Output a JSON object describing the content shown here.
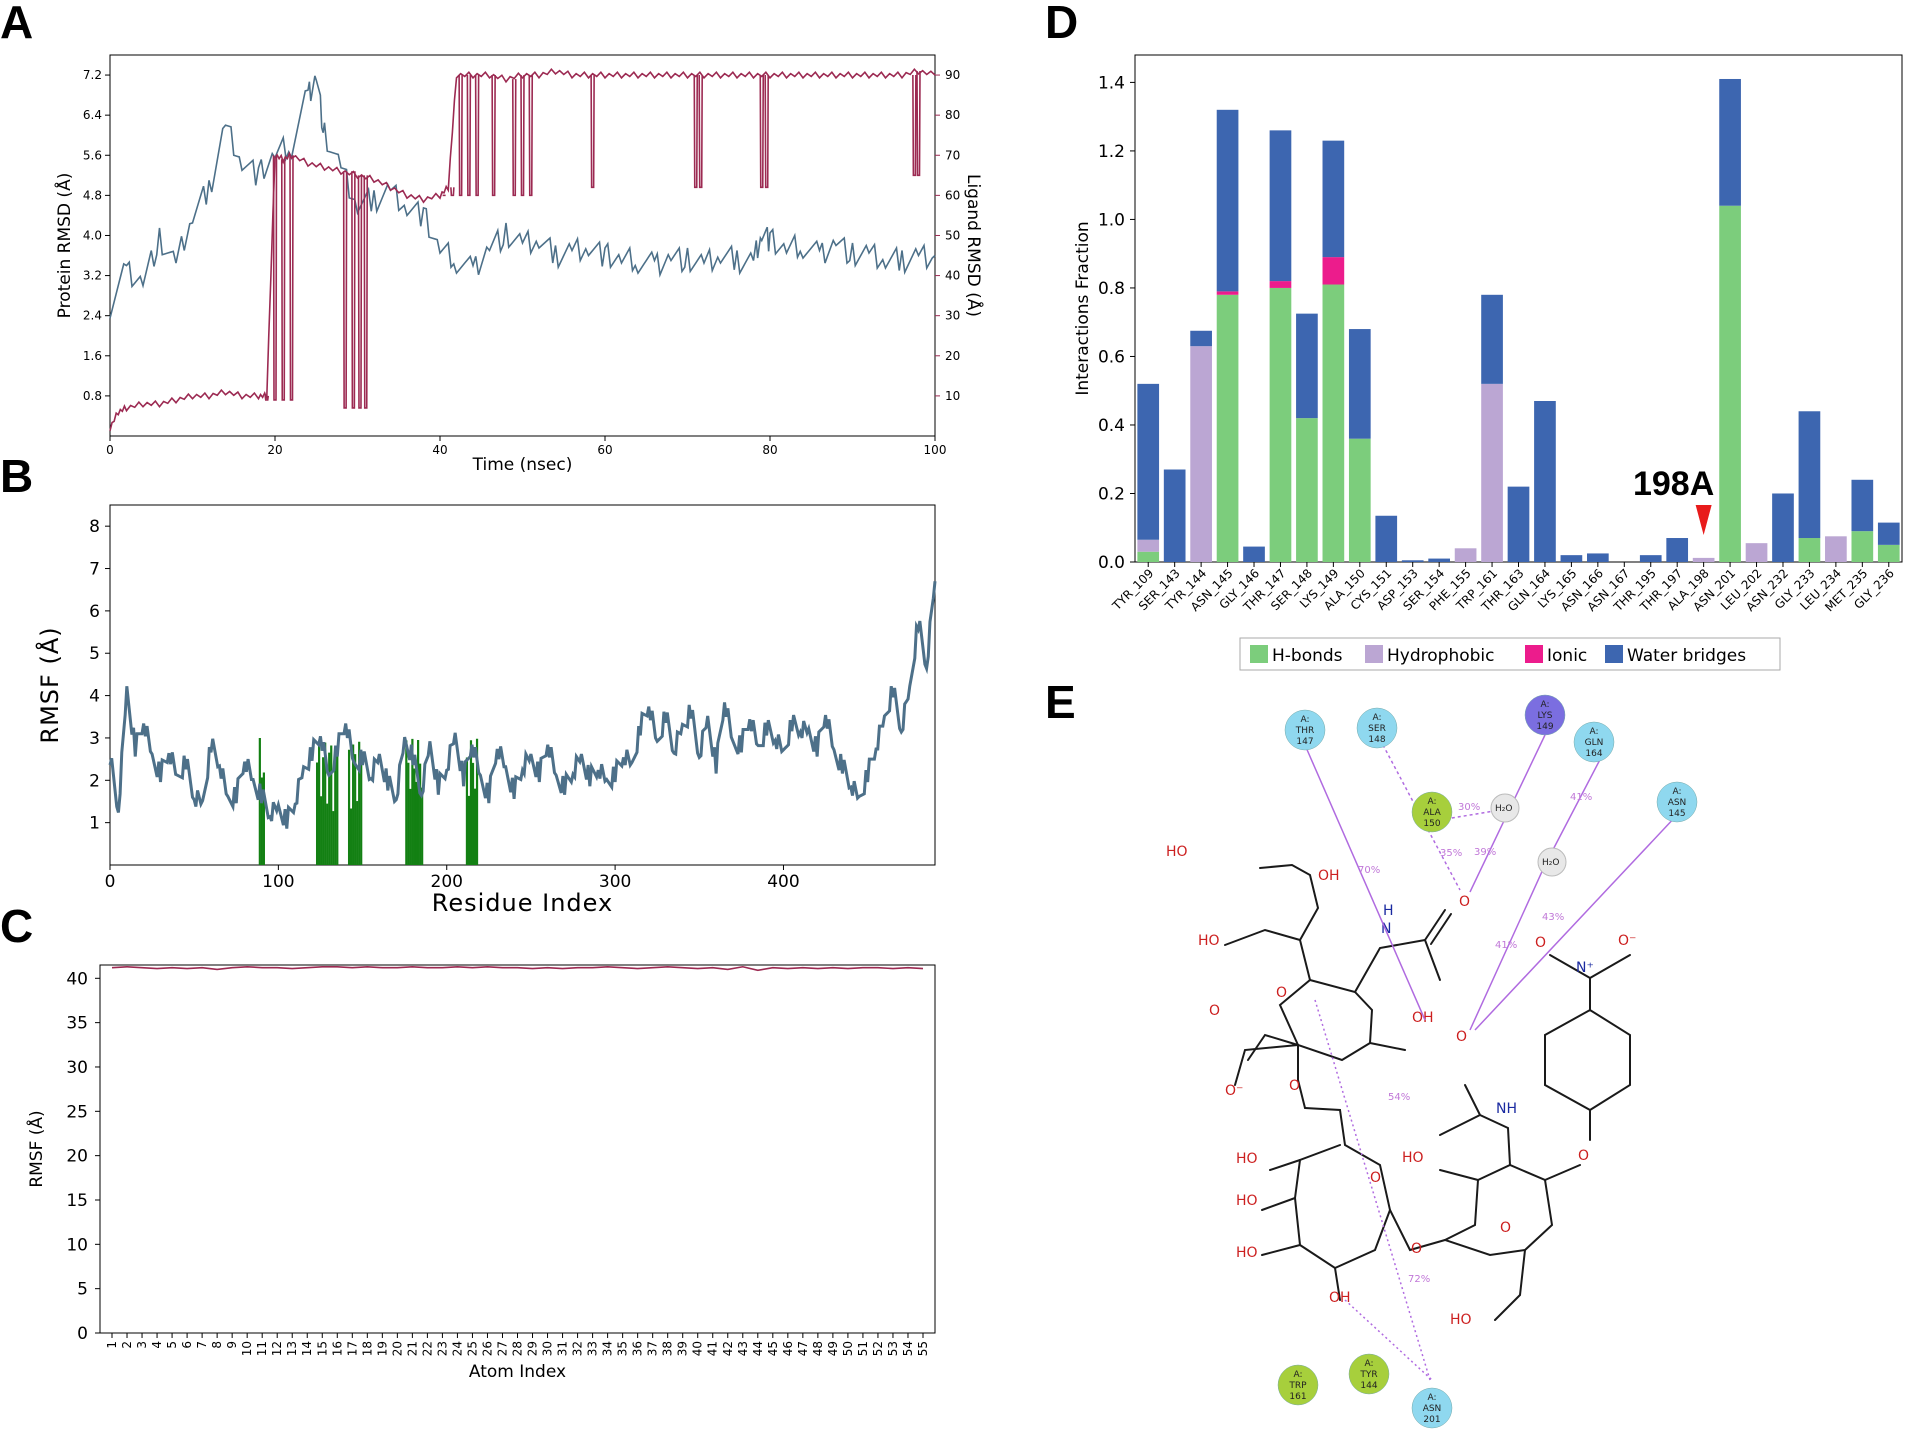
{
  "panels": {
    "a": "A",
    "b": "B",
    "c": "C",
    "d": "D",
    "e": "E"
  },
  "colors": {
    "protein": "#4d7089",
    "ligand": "#9c2a52",
    "hbond": "#7ccd7c",
    "hydrophobic": "#bba6d3",
    "ionic": "#ec1c8c",
    "water": "#3d66b0",
    "contact": "#138013",
    "arrow": "#b06be0"
  },
  "chart_data": [
    {
      "id": "A",
      "type": "line",
      "title": "",
      "xlabel": "Time (nsec)",
      "ylabel": "Protein RMSD (Å)",
      "ylabel2": "Ligand RMSD (Å)",
      "xlim": [
        0,
        100
      ],
      "ylim": [
        0,
        7.6
      ],
      "y2lim": [
        0,
        95
      ],
      "xticks": [
        "0",
        "20",
        "40",
        "60",
        "80",
        "100"
      ],
      "yticks": [
        "0.8",
        "1.6",
        "2.4",
        "3.2",
        "4.0",
        "4.8",
        "5.6",
        "6.4",
        "7.2"
      ],
      "y2ticks": [
        "10",
        "20",
        "30",
        "40",
        "50",
        "60",
        "70",
        "80",
        "90"
      ],
      "series": [
        {
          "name": "Protein RMSD",
          "axis": "left",
          "x": [
            0,
            2,
            4,
            6,
            8,
            10,
            12,
            14,
            16,
            18,
            20,
            22,
            24,
            25,
            26,
            28,
            30,
            32,
            34,
            36,
            38,
            40,
            42,
            44,
            46,
            48,
            50,
            52,
            54,
            56,
            58,
            60,
            62,
            64,
            66,
            68,
            70,
            72,
            74,
            76,
            78,
            79,
            80,
            82,
            84,
            86,
            88,
            90,
            92,
            94,
            96,
            98,
            100
          ],
          "y": [
            2.6,
            3.3,
            3.1,
            3.9,
            3.4,
            4.4,
            4.9,
            6.2,
            5.5,
            5.2,
            5.6,
            5.8,
            6.8,
            7.2,
            6.0,
            5.3,
            4.6,
            4.7,
            4.9,
            4.6,
            4.4,
            3.7,
            3.5,
            3.3,
            3.8,
            4.0,
            3.8,
            3.9,
            3.6,
            3.7,
            3.8,
            3.6,
            3.5,
            3.5,
            3.4,
            3.6,
            3.5,
            3.4,
            3.6,
            3.5,
            3.5,
            4.1,
            3.9,
            3.7,
            3.8,
            3.6,
            3.9,
            3.6,
            3.6,
            3.5,
            3.5,
            3.6,
            3.6
          ]
        },
        {
          "name": "Ligand RMSD",
          "axis": "right",
          "x": [
            0,
            1,
            2,
            4,
            6,
            8,
            10,
            12,
            14,
            16,
            18,
            19,
            20,
            21,
            22,
            24,
            26,
            28,
            30,
            32,
            34,
            36,
            38,
            40,
            41,
            42,
            44,
            46,
            48,
            50,
            52,
            54,
            56,
            58,
            60,
            62,
            64,
            66,
            68,
            70,
            72,
            74,
            76,
            78,
            80,
            82,
            84,
            86,
            88,
            90,
            92,
            94,
            96,
            98,
            100
          ],
          "y": [
            2,
            6,
            7,
            8,
            8,
            9,
            10,
            10,
            11,
            10,
            10,
            10,
            70,
            69,
            70,
            68,
            67,
            66,
            65,
            64,
            62,
            60,
            59,
            60,
            62,
            90,
            90,
            90,
            89,
            90,
            90,
            91,
            90,
            90,
            90,
            90,
            90,
            90,
            90,
            90,
            90,
            90,
            90,
            90,
            90,
            90,
            90,
            90,
            90,
            90,
            90,
            90,
            90,
            91,
            90
          ]
        }
      ],
      "dropouts_ligand": [
        {
          "x": 19,
          "to": 9
        },
        {
          "x": 20,
          "to": 9
        },
        {
          "x": 21,
          "to": 9
        },
        {
          "x": 22,
          "to": 9
        },
        {
          "x": 28.5,
          "to": 7
        },
        {
          "x": 29.5,
          "to": 7
        },
        {
          "x": 30.3,
          "to": 7
        },
        {
          "x": 31,
          "to": 7
        },
        {
          "x": 40.5,
          "to": 60
        },
        {
          "x": 41.5,
          "to": 60
        },
        {
          "x": 42.5,
          "to": 60
        },
        {
          "x": 43.5,
          "to": 60
        },
        {
          "x": 44.5,
          "to": 60
        },
        {
          "x": 46.5,
          "to": 60
        },
        {
          "x": 49,
          "to": 60
        },
        {
          "x": 50,
          "to": 60
        },
        {
          "x": 51,
          "to": 60
        },
        {
          "x": 58.5,
          "to": 62
        },
        {
          "x": 71,
          "to": 62
        },
        {
          "x": 71.6,
          "to": 62
        },
        {
          "x": 79,
          "to": 62
        },
        {
          "x": 79.6,
          "to": 62
        },
        {
          "x": 97.5,
          "to": 65
        },
        {
          "x": 98,
          "to": 65
        }
      ]
    },
    {
      "id": "B",
      "type": "line",
      "xlabel": "Residue Index",
      "ylabel": "RMSF (Å)",
      "xlim": [
        0,
        490
      ],
      "ylim": [
        0,
        8.5
      ],
      "xticks": [
        "0",
        "100",
        "200",
        "300",
        "400"
      ],
      "yticks": [
        "1",
        "2",
        "3",
        "4",
        "5",
        "6",
        "7",
        "8"
      ],
      "series": [
        {
          "name": "RMSF",
          "x": [
            0,
            5,
            10,
            15,
            20,
            25,
            30,
            35,
            40,
            45,
            50,
            55,
            60,
            65,
            70,
            75,
            80,
            85,
            90,
            95,
            100,
            105,
            110,
            115,
            120,
            125,
            130,
            135,
            140,
            145,
            150,
            155,
            160,
            165,
            170,
            175,
            180,
            185,
            190,
            195,
            200,
            205,
            210,
            215,
            220,
            225,
            230,
            235,
            240,
            245,
            250,
            255,
            260,
            265,
            270,
            275,
            280,
            285,
            290,
            295,
            300,
            305,
            310,
            315,
            320,
            325,
            330,
            335,
            340,
            345,
            350,
            355,
            360,
            365,
            370,
            375,
            380,
            385,
            390,
            395,
            400,
            405,
            410,
            415,
            420,
            425,
            430,
            435,
            440,
            445,
            450,
            455,
            460,
            465,
            470,
            475,
            480,
            485,
            490
          ],
          "y": [
            2.6,
            1.3,
            4.1,
            2.8,
            3.4,
            2.5,
            2.2,
            2.7,
            2.0,
            2.5,
            1.6,
            1.4,
            2.9,
            2.4,
            1.5,
            1.7,
            2.5,
            1.9,
            1.7,
            1.2,
            1.3,
            1.1,
            1.5,
            2.2,
            2.7,
            3.1,
            2.0,
            2.8,
            3.4,
            2.3,
            2.6,
            2.1,
            2.5,
            2.0,
            1.6,
            2.9,
            2.6,
            1.7,
            2.8,
            1.9,
            2.3,
            3.0,
            2.1,
            2.9,
            2.0,
            1.7,
            2.8,
            2.2,
            1.8,
            2.3,
            2.5,
            2.2,
            2.9,
            2.0,
            1.9,
            2.2,
            2.5,
            2.1,
            2.3,
            1.9,
            2.2,
            2.6,
            2.3,
            3.3,
            3.8,
            2.8,
            3.6,
            2.7,
            3.2,
            3.7,
            2.6,
            3.4,
            2.4,
            3.9,
            2.8,
            2.9,
            3.5,
            2.7,
            3.3,
            3.0,
            2.6,
            3.4,
            3.2,
            3.1,
            2.8,
            3.6,
            2.6,
            2.4,
            1.9,
            1.5,
            2.2,
            2.8,
            3.4,
            4.2,
            3.2,
            4.1,
            5.8,
            4.7,
            6.7
          ]
        }
      ],
      "ligand_contact_residues": [
        [
          89,
          92
        ],
        [
          123,
          136
        ],
        [
          142,
          150
        ],
        [
          176,
          182
        ],
        [
          183,
          186
        ],
        [
          212,
          218
        ]
      ]
    },
    {
      "id": "C",
      "type": "line",
      "xlabel": "Atom Index",
      "ylabel": "RMSF (Å)",
      "xlim": [
        0,
        56
      ],
      "ylim": [
        0,
        41.5
      ],
      "yticks": [
        "0",
        "5",
        "10",
        "15",
        "20",
        "25",
        "30",
        "35",
        "40"
      ],
      "xticks": [
        "1",
        "2",
        "3",
        "4",
        "5",
        "6",
        "7",
        "8",
        "9",
        "10",
        "11",
        "12",
        "13",
        "14",
        "15",
        "16",
        "17",
        "18",
        "19",
        "20",
        "21",
        "22",
        "23",
        "24",
        "25",
        "26",
        "27",
        "28",
        "29",
        "30",
        "31",
        "32",
        "33",
        "34",
        "35",
        "36",
        "37",
        "38",
        "39",
        "40",
        "41",
        "42",
        "43",
        "44",
        "45",
        "46",
        "47",
        "48",
        "49",
        "50",
        "51",
        "52",
        "53",
        "54",
        "55"
      ],
      "series": [
        {
          "name": "Ligand RMSF",
          "y": [
            41.2,
            41.3,
            41.2,
            41.1,
            41.2,
            41.1,
            41.2,
            41.0,
            41.2,
            41.3,
            41.2,
            41.2,
            41.1,
            41.2,
            41.3,
            41.3,
            41.2,
            41.3,
            41.2,
            41.2,
            41.3,
            41.2,
            41.2,
            41.3,
            41.2,
            41.3,
            41.2,
            41.2,
            41.1,
            41.2,
            41.1,
            41.2,
            41.2,
            41.3,
            41.2,
            41.1,
            41.2,
            41.3,
            41.2,
            41.1,
            41.2,
            41.0,
            41.3,
            40.9,
            41.2,
            41.1,
            41.2,
            41.1,
            41.2,
            41.1,
            41.2,
            41.2,
            41.1,
            41.2,
            41.1
          ]
        }
      ]
    },
    {
      "id": "D",
      "type": "bar",
      "stacked": true,
      "ylabel": "Interactions Fraction",
      "ylim": [
        0,
        1.48
      ],
      "yticks": [
        "0.0",
        "0.2",
        "0.4",
        "0.6",
        "0.8",
        "1.0",
        "1.2",
        "1.4"
      ],
      "categories": [
        "TYR_109",
        "SER_143",
        "TYR_144",
        "ASN_145",
        "GLY_146",
        "THR_147",
        "SER_148",
        "LYS_149",
        "ALA_150",
        "CYS_151",
        "ASP_153",
        "SER_154",
        "PHE_155",
        "TRP_161",
        "THR_163",
        "GLN_164",
        "LYS_165",
        "ASN_166",
        "ASN_167",
        "THR_195",
        "THR_197",
        "ALA_198",
        "ASN_201",
        "LEU_202",
        "ASN_232",
        "GLY_233",
        "LEU_234",
        "MET_235",
        "GLY_236"
      ],
      "series": [
        {
          "name": "H-bonds",
          "values": [
            0.03,
            0,
            0,
            0.78,
            0,
            0.8,
            0.42,
            0.81,
            0.36,
            0,
            0,
            0,
            0,
            0,
            0,
            0,
            0,
            0,
            0,
            0,
            0,
            0,
            1.04,
            0,
            0,
            0.07,
            0,
            0.09,
            0.05
          ]
        },
        {
          "name": "Hydrophobic",
          "values": [
            0.035,
            0,
            0.63,
            0,
            0,
            0,
            0,
            0,
            0,
            0,
            0,
            0,
            0.04,
            0.52,
            0,
            0,
            0,
            0,
            0,
            0,
            0,
            0.012,
            0,
            0.055,
            0,
            0,
            0.075,
            0,
            0
          ]
        },
        {
          "name": "Ionic",
          "values": [
            0,
            0,
            0,
            0.01,
            0,
            0.02,
            0,
            0.08,
            0,
            0,
            0,
            0,
            0,
            0,
            0,
            0,
            0,
            0,
            0,
            0,
            0,
            0,
            0,
            0,
            0,
            0,
            0,
            0,
            0
          ]
        },
        {
          "name": "Water bridges",
          "values": [
            0.455,
            0.27,
            0.045,
            0.53,
            0.045,
            0.44,
            0.305,
            0.34,
            0.32,
            0.135,
            0.005,
            0.01,
            0,
            0.26,
            0.22,
            0.47,
            0.02,
            0.025,
            0,
            0.02,
            0.07,
            0,
            0.37,
            0,
            0.2,
            0.37,
            0,
            0.15,
            0.065
          ]
        }
      ],
      "legend": [
        "H-bonds",
        "Hydrophobic",
        "Ionic",
        "Water bridges"
      ],
      "annotation": {
        "text": "198A",
        "category": "ALA_198"
      }
    }
  ],
  "interaction_diagram": {
    "residues": [
      {
        "chain": "A:",
        "name": "THR",
        "num": "147",
        "type": "polar"
      },
      {
        "chain": "A:",
        "name": "SER",
        "num": "148",
        "type": "polar"
      },
      {
        "chain": "A:",
        "name": "LYS",
        "num": "149",
        "type": "positive"
      },
      {
        "chain": "A:",
        "name": "GLN",
        "num": "164",
        "type": "polar"
      },
      {
        "chain": "A:",
        "name": "ASN",
        "num": "145",
        "type": "polar"
      },
      {
        "chain": "A:",
        "name": "ALA",
        "num": "150",
        "type": "hydrophobic"
      },
      {
        "chain": "A:",
        "name": "TRP",
        "num": "161",
        "type": "hydrophobic"
      },
      {
        "chain": "A:",
        "name": "TYR",
        "num": "144",
        "type": "hydrophobic"
      },
      {
        "chain": "A:",
        "name": "ASN",
        "num": "201",
        "type": "polar"
      }
    ],
    "waters": [
      "H₂O",
      "H₂O"
    ],
    "percents": [
      "70%",
      "30%",
      "35%",
      "39%",
      "41%",
      "43%",
      "41%",
      "54%",
      "72%"
    ],
    "atoms": {
      "ho": "HO",
      "oh": "OH",
      "o": "O",
      "om": "O⁻",
      "n": "N",
      "nplus": "N⁺",
      "h": "H",
      "nh": "NH"
    }
  }
}
